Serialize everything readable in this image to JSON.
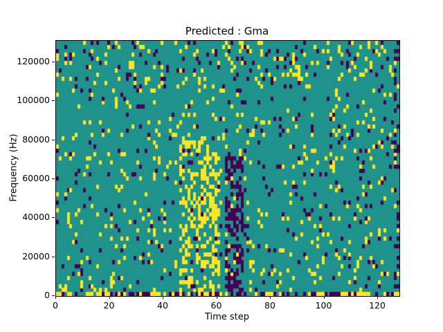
{
  "chart_data": {
    "type": "heatmap",
    "title": "Predicted : Gma",
    "xlabel": "Time step",
    "ylabel": "Frequency (Hz)",
    "xlim": [
      0,
      128
    ],
    "ylim": [
      0,
      131072
    ],
    "x_ticks": [
      0,
      20,
      40,
      60,
      80,
      100,
      120
    ],
    "y_ticks": [
      0,
      20000,
      40000,
      60000,
      80000,
      100000,
      120000
    ],
    "grid": {
      "cols": 128,
      "rows": 64
    },
    "colormap": {
      "name": "viridis-3level",
      "background": "#20928c",
      "yellow": "#fde725",
      "dark": "#440154"
    },
    "legend": "none",
    "noise_seed": 42,
    "base_density": {
      "yellow": 0.055,
      "dark": 0.042
    },
    "features": [
      {
        "name": "yellow-burst-mid",
        "x": [
          46,
          61
        ],
        "freq": [
          2048,
          82000
        ],
        "yellow": 0.38,
        "dark": 0.05
      },
      {
        "name": "dark-vertical-band",
        "x": [
          63,
          70
        ],
        "freq": [
          2048,
          72000
        ],
        "yellow": 0.04,
        "dark": 0.5
      },
      {
        "name": "dense-bottom-row",
        "x": [
          0,
          128
        ],
        "freq": [
          0,
          2048
        ],
        "yellow": 0.3,
        "dark": 0.38
      },
      {
        "name": "top-frequency-scatter",
        "x": [
          0,
          128
        ],
        "freq": [
          110000,
          131072
        ],
        "yellow": 0.09,
        "dark": 0.07
      },
      {
        "name": "right-edge-column",
        "x": [
          126.5,
          128
        ],
        "freq": [
          2048,
          131072
        ],
        "yellow": 0.1,
        "dark": 0.18
      }
    ]
  }
}
